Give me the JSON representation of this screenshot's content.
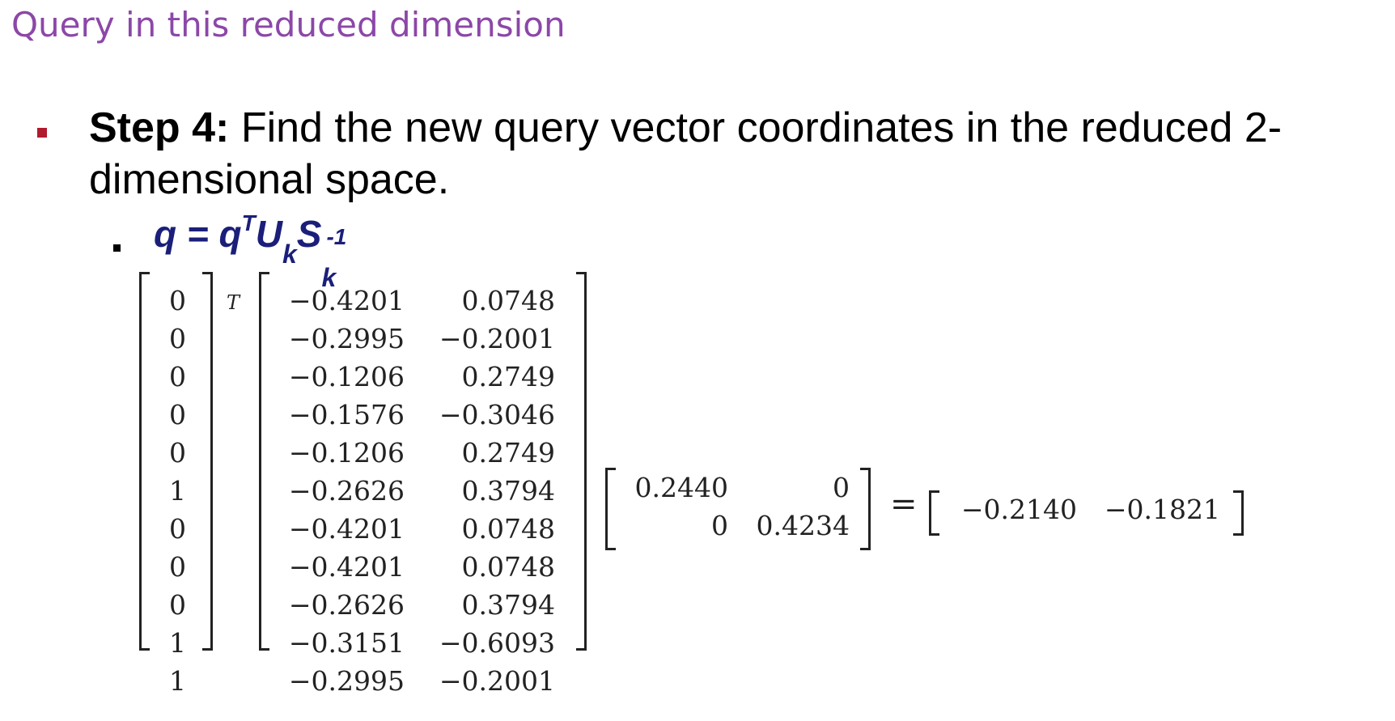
{
  "title": "Query in this reduced dimension",
  "step": {
    "label": "Step 4:",
    "text": " Find the new query vector coordinates in the reduced 2-dimensional space."
  },
  "formula": {
    "lhs": "q = q",
    "sup_T": "T",
    "U": "U",
    "sub_k1": "k",
    "S": "S",
    "sub_k2": "k",
    "sup_inv": "-1"
  },
  "equation": {
    "transpose_symbol": "T",
    "equals_symbol": "=",
    "query_vector": [
      "0",
      "0",
      "0",
      "0",
      "0",
      "1",
      "0",
      "0",
      "0",
      "1",
      "1"
    ],
    "U_k": [
      [
        "−0.4201",
        "0.0748"
      ],
      [
        "−0.2995",
        "−0.2001"
      ],
      [
        "−0.1206",
        "0.2749"
      ],
      [
        "−0.1576",
        "−0.3046"
      ],
      [
        "−0.1206",
        "0.2749"
      ],
      [
        "−0.2626",
        "0.3794"
      ],
      [
        "−0.4201",
        "0.0748"
      ],
      [
        "−0.4201",
        "0.0748"
      ],
      [
        "−0.2626",
        "0.3794"
      ],
      [
        "−0.3151",
        "−0.6093"
      ],
      [
        "−0.2995",
        "−0.2001"
      ]
    ],
    "S_k_inverse": [
      [
        "0.2440",
        "0"
      ],
      [
        "0",
        "0.4234"
      ]
    ],
    "result": [
      "−0.2140",
      "−0.1821"
    ]
  }
}
